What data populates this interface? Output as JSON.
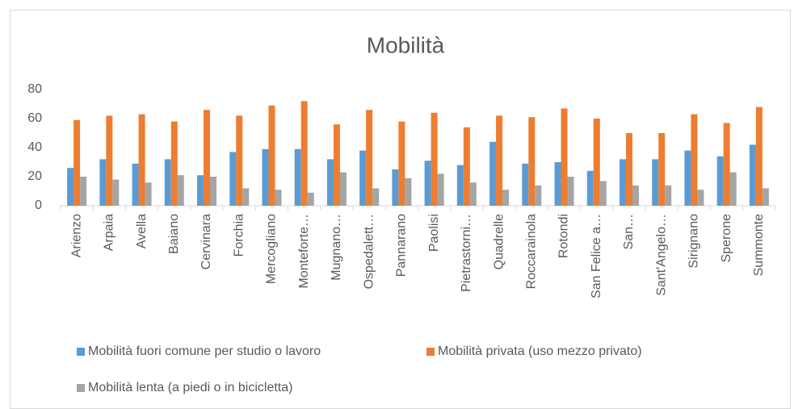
{
  "chart_data": {
    "type": "bar",
    "title": "Mobilità",
    "categories": [
      "Arienzo",
      "Arpaia",
      "Avella",
      "Baiano",
      "Cervinara",
      "Forchia",
      "Mercogliano",
      "Monteforte…",
      "Mugnano…",
      "Ospedalett…",
      "Pannarano",
      "Paolisi",
      "Pietrastorni…",
      "Quadrelle",
      "Roccarainola",
      "Rotondi",
      "San Felice a…",
      "San…",
      "Sant'Angelo…",
      "Sirignano",
      "Sperone",
      "Summonte"
    ],
    "series": [
      {
        "name": "Mobilità fuori comune per studio o lavoro",
        "color": "#5b9bd5",
        "values": [
          26,
          32,
          29,
          32,
          21,
          37,
          39,
          39,
          32,
          38,
          25,
          31,
          28,
          44,
          29,
          30,
          24,
          32,
          32,
          38,
          34,
          42
        ]
      },
      {
        "name": "Mobilità privata (uso mezzo privato)",
        "color": "#ed7d31",
        "values": [
          59,
          62,
          63,
          58,
          66,
          62,
          69,
          72,
          56,
          66,
          58,
          64,
          54,
          62,
          61,
          67,
          60,
          50,
          50,
          63,
          57,
          68
        ]
      },
      {
        "name": "Mobilità lenta (a piedi o in bicicletta)",
        "color": "#a5a5a5",
        "values": [
          20,
          18,
          16,
          21,
          20,
          12,
          11,
          9,
          23,
          12,
          19,
          22,
          16,
          11,
          14,
          20,
          17,
          14,
          14,
          11,
          23,
          12
        ]
      }
    ],
    "ylim": [
      0,
      80
    ],
    "yticks": [
      0,
      20,
      40,
      60,
      80
    ],
    "grid": false
  }
}
